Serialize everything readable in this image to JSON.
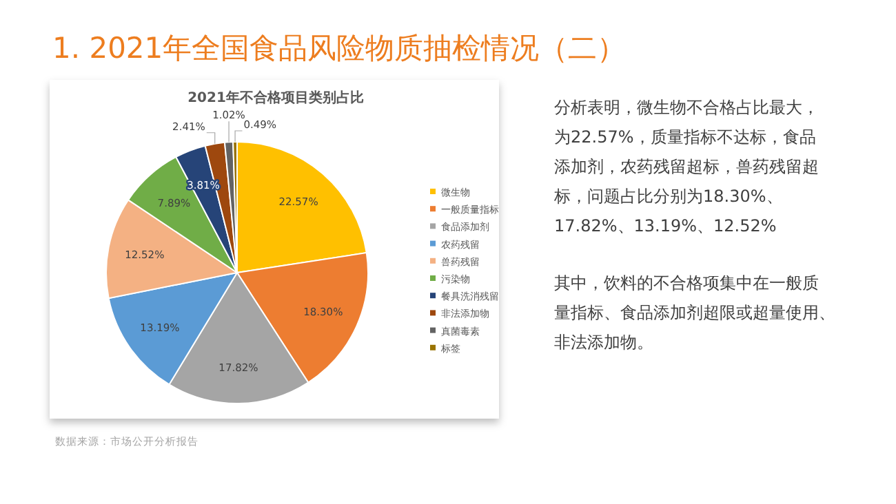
{
  "chart_data": {
    "type": "pie",
    "title": "1. 2021年全国食品风险物质抽检情况（二）",
    "subtitle": "2021年不合格项目类别占比",
    "categories": [
      "微生物",
      "一般质量指标",
      "食品添加剂",
      "农药残留",
      "兽药残留",
      "污染物",
      "餐具洗消残留",
      "非法添加物",
      "真菌毒素",
      "标签"
    ],
    "values": [
      22.57,
      18.3,
      17.82,
      13.19,
      12.52,
      7.89,
      3.81,
      2.41,
      1.02,
      0.49
    ],
    "value_labels": [
      "22.57%",
      "18.30%",
      "17.82%",
      "13.19%",
      "12.52%",
      "7.89%",
      "3.81%",
      "2.41%",
      "1.02%",
      "0.49%"
    ],
    "colors": [
      "#ffc000",
      "#ed7d31",
      "#a5a5a5",
      "#5b9bd5",
      "#f4b183",
      "#70ad47",
      "#264478",
      "#9e480e",
      "#636363",
      "#997300"
    ],
    "legend": "right",
    "annotations": [
      "数据来源：市场公开分析报告",
      "分析表明，微生物不合格占比最大，为22.57%，质量指标不达标，食品添加剂，农药残留超标，兽药残留超标，问题占比分别为18.30%、17.82%、13.19%、12.52%",
      "其中，饮料的不合格项集中在一般质量指标、食品添加剂超限或超量使用、非法添加物。"
    ]
  }
}
